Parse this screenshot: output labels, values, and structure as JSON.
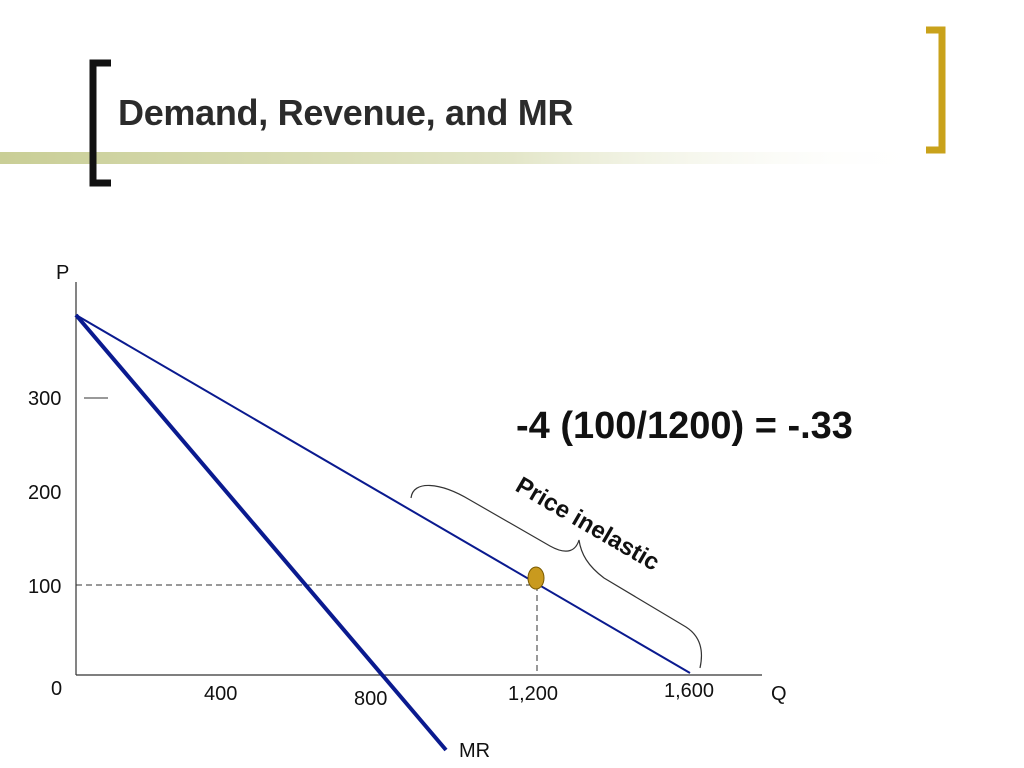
{
  "slide": {
    "title": "Demand, Revenue, and MR",
    "colors": {
      "accent_gold": "#C9A21B",
      "accent_band": "#C9CE96",
      "bracket_dark": "#111111",
      "line_blue": "#0A1A8F",
      "point_fill": "#C99A1E"
    }
  },
  "diagram": {
    "y_axis_label": "P",
    "x_axis_label": "Q",
    "origin_label": "0",
    "y_ticks": [
      "300",
      "200",
      "100"
    ],
    "x_ticks": [
      "400",
      "800",
      "1,200",
      "1,600"
    ],
    "mr_label": "MR",
    "formula": "-4 (100/1200) = -.33",
    "brace_label": "Price inelastic"
  }
}
